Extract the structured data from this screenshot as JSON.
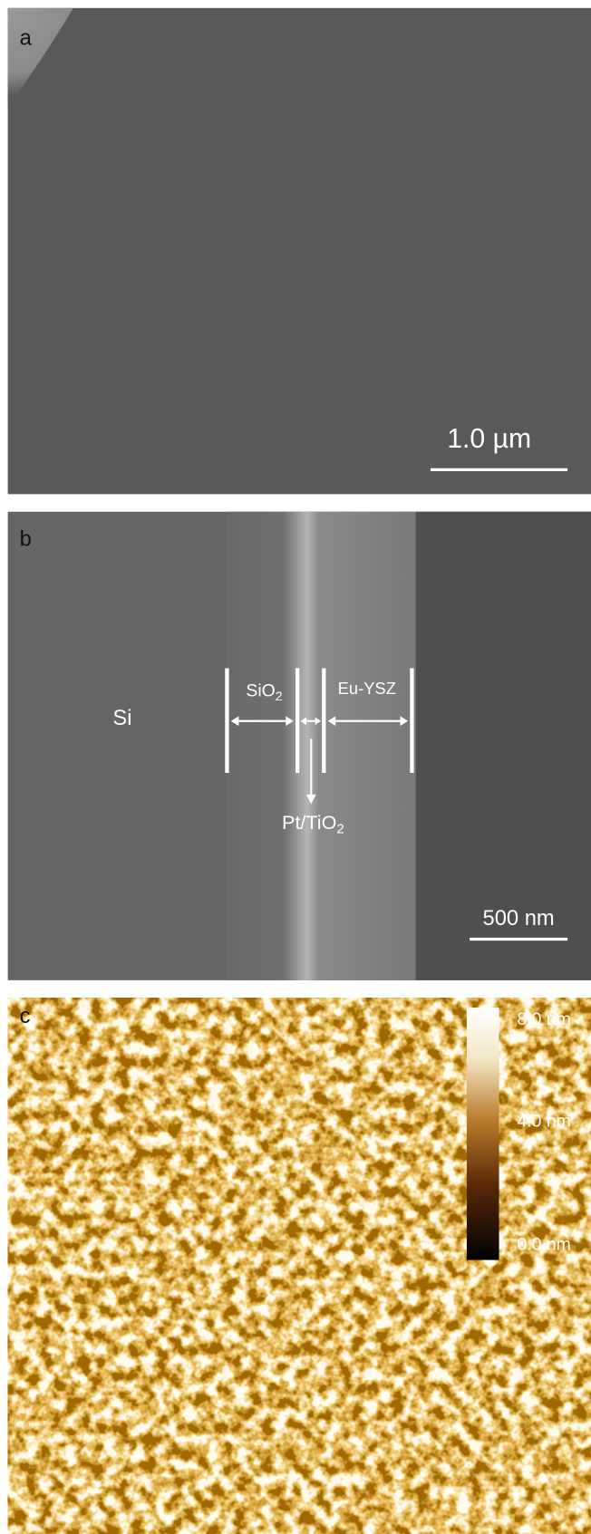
{
  "panels": [
    {
      "label": "a",
      "scale_bar": "1.0 µm"
    },
    {
      "label": "b",
      "scale_bar": "500 nm",
      "annotations": {
        "si": "Si",
        "sio2": {
          "base": "SiO",
          "sub": "2"
        },
        "euysz": "Eu-YSZ",
        "pttio2": {
          "base": "Pt/TiO",
          "sub": "2"
        }
      }
    },
    {
      "label": "c",
      "colorbar": [
        "8.0 nm",
        "4.0 nm",
        "0.0 nm"
      ]
    }
  ]
}
